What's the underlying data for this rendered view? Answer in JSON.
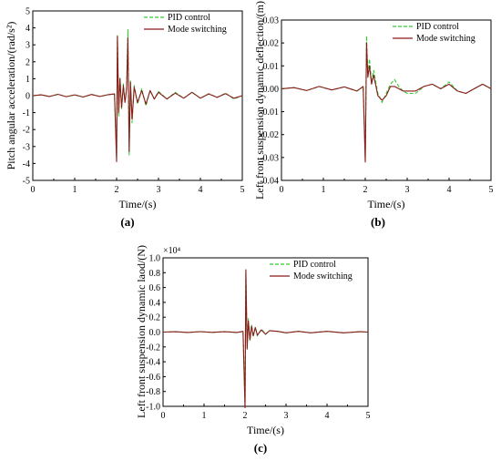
{
  "colors": {
    "pid": "#33cc33",
    "mode": "#8b1a1a",
    "axis": "#000000"
  },
  "chart_data": [
    {
      "type": "line",
      "panel_label": "(a)",
      "xlabel": "Time/(s)",
      "ylabel": "Pitch angular acceleration/(rad/s²)",
      "xlim": [
        0,
        5
      ],
      "ylim": [
        -5,
        5
      ],
      "xticks": [
        "0",
        "1",
        "2",
        "3",
        "4",
        "5"
      ],
      "yticks": [
        "-5",
        "-4",
        "-3",
        "-2",
        "-1",
        "0",
        "1",
        "2",
        "3",
        "4",
        "5"
      ],
      "grid": false,
      "legend_position": "top-right",
      "series": [
        {
          "name": "PID control",
          "style": "dashed",
          "x": [
            0,
            0.2,
            0.4,
            0.6,
            0.8,
            1.0,
            1.2,
            1.4,
            1.6,
            1.8,
            1.95,
            2.0,
            2.02,
            2.05,
            2.08,
            2.12,
            2.16,
            2.2,
            2.24,
            2.27,
            2.3,
            2.33,
            2.37,
            2.42,
            2.5,
            2.6,
            2.7,
            2.8,
            2.9,
            3.0,
            3.2,
            3.4,
            3.6,
            3.8,
            4.0,
            4.2,
            4.4,
            4.6,
            4.8,
            5.0
          ],
          "y": [
            0,
            0.05,
            -0.05,
            0.08,
            -0.06,
            0.05,
            -0.08,
            0.07,
            -0.05,
            0.06,
            0.1,
            -3.7,
            3.6,
            -1.2,
            1.1,
            -0.8,
            0.7,
            -0.4,
            0.5,
            3.9,
            -3.5,
            0.9,
            -1.6,
            0.6,
            -0.5,
            0.4,
            -0.6,
            0.3,
            -0.2,
            0.25,
            -0.2,
            0.2,
            -0.15,
            0.2,
            -0.15,
            0.12,
            -0.1,
            0.15,
            -0.2,
            0
          ]
        },
        {
          "name": "Mode switching",
          "style": "solid",
          "x": [
            0,
            0.2,
            0.4,
            0.6,
            0.8,
            1.0,
            1.2,
            1.4,
            1.6,
            1.8,
            1.95,
            2.0,
            2.02,
            2.05,
            2.08,
            2.12,
            2.16,
            2.2,
            2.24,
            2.27,
            2.3,
            2.33,
            2.37,
            2.42,
            2.5,
            2.6,
            2.7,
            2.8,
            2.9,
            3.0,
            3.2,
            3.4,
            3.6,
            3.8,
            4.0,
            4.2,
            4.4,
            4.6,
            4.8,
            5.0
          ],
          "y": [
            0,
            0.05,
            -0.05,
            0.08,
            -0.06,
            0.05,
            -0.08,
            0.07,
            -0.05,
            0.06,
            0.1,
            -3.9,
            3.5,
            -1.0,
            1.0,
            -0.7,
            0.6,
            -0.4,
            0.4,
            3.4,
            -3.3,
            0.8,
            -1.4,
            0.5,
            -0.4,
            0.3,
            -0.5,
            0.3,
            -0.2,
            0.2,
            -0.2,
            0.15,
            -0.15,
            0.2,
            -0.15,
            0.1,
            -0.1,
            0.12,
            -0.15,
            0
          ]
        }
      ]
    },
    {
      "type": "line",
      "panel_label": "(b)",
      "xlabel": "Time/(s)",
      "ylabel": "Left front suspension dynamic deflection/(m)",
      "xlim": [
        0,
        5
      ],
      "ylim": [
        -0.04,
        0.03
      ],
      "xticks": [
        "0",
        "1",
        "2",
        "3",
        "4",
        "5"
      ],
      "yticks": [
        "-0.04",
        "-0.03",
        "-0.02",
        "-0.01",
        "0.00",
        "0.01",
        "0.02",
        "0.03"
      ],
      "grid": false,
      "legend_position": "top-right",
      "series": [
        {
          "name": "PID control",
          "style": "dashed",
          "x": [
            0,
            0.3,
            0.6,
            0.9,
            1.2,
            1.5,
            1.8,
            1.95,
            2.0,
            2.03,
            2.06,
            2.1,
            2.15,
            2.2,
            2.3,
            2.4,
            2.5,
            2.6,
            2.7,
            2.8,
            2.9,
            3.0,
            3.2,
            3.4,
            3.6,
            3.8,
            4.0,
            4.2,
            4.4,
            4.6,
            4.8,
            5.0
          ],
          "y": [
            0,
            0.0005,
            -0.0008,
            0.001,
            -0.0005,
            0.0008,
            -0.001,
            0.001,
            -0.031,
            0.023,
            0.006,
            0.013,
            0.003,
            0.008,
            -0.002,
            -0.006,
            -0.002,
            0.002,
            0.004,
            0.001,
            -0.001,
            -0.002,
            -0.002,
            0.001,
            0.002,
            0.0,
            0.003,
            -0.001,
            -0.002,
            0.0,
            0.002,
            0.0
          ]
        },
        {
          "name": "Mode switching",
          "style": "solid",
          "x": [
            0,
            0.3,
            0.6,
            0.9,
            1.2,
            1.5,
            1.8,
            1.95,
            2.0,
            2.03,
            2.06,
            2.1,
            2.15,
            2.2,
            2.3,
            2.4,
            2.5,
            2.6,
            2.7,
            2.8,
            2.9,
            3.0,
            3.2,
            3.4,
            3.6,
            3.8,
            4.0,
            4.2,
            4.4,
            4.6,
            4.8,
            5.0
          ],
          "y": [
            0,
            0.0005,
            -0.0008,
            0.001,
            -0.0005,
            0.0008,
            -0.001,
            0.001,
            -0.032,
            0.02,
            0.005,
            0.01,
            0.002,
            0.006,
            -0.003,
            -0.005,
            -0.003,
            0.001,
            0.001,
            0.0,
            -0.001,
            -0.001,
            -0.001,
            0.001,
            0.002,
            0.0,
            0.002,
            -0.001,
            -0.002,
            0.0,
            0.002,
            0.0
          ]
        }
      ]
    },
    {
      "type": "line",
      "panel_label": "(c)",
      "xlabel": "Time/(s)",
      "ylabel": "Left front suspension dynamic laod/(N)",
      "multiplier": "×10⁴",
      "xlim": [
        0,
        5
      ],
      "ylim": [
        -1.0,
        1.0
      ],
      "xticks": [
        "0",
        "1",
        "2",
        "3",
        "4",
        "5"
      ],
      "yticks": [
        "-1.0",
        "-0.8",
        "-0.6",
        "-0.4",
        "-0.2",
        "0.0",
        "0.2",
        "0.4",
        "0.6",
        "0.8",
        "1.0"
      ],
      "grid": false,
      "legend_position": "top-right",
      "series": [
        {
          "name": "PID control",
          "style": "dashed",
          "x": [
            0,
            0.3,
            0.6,
            0.9,
            1.2,
            1.5,
            1.8,
            1.95,
            2.0,
            2.02,
            2.05,
            2.08,
            2.12,
            2.16,
            2.2,
            2.25,
            2.3,
            2.4,
            2.5,
            2.6,
            2.8,
            3.0,
            3.3,
            3.6,
            4.0,
            4.4,
            4.8,
            5.0
          ],
          "y": [
            0,
            0.005,
            -0.005,
            0.006,
            -0.004,
            0.005,
            -0.005,
            0.01,
            -1.0,
            0.8,
            -0.2,
            0.18,
            -0.12,
            0.1,
            -0.06,
            0.07,
            -0.05,
            0.04,
            -0.03,
            0.02,
            0.01,
            -0.01,
            0.01,
            -0.01,
            0.01,
            -0.01,
            0.005,
            0
          ]
        },
        {
          "name": "Mode switching",
          "style": "solid",
          "x": [
            0,
            0.3,
            0.6,
            0.9,
            1.2,
            1.5,
            1.8,
            1.95,
            2.0,
            2.02,
            2.05,
            2.08,
            2.12,
            2.16,
            2.2,
            2.25,
            2.3,
            2.4,
            2.5,
            2.6,
            2.8,
            3.0,
            3.3,
            3.6,
            4.0,
            4.4,
            4.8,
            5.0
          ],
          "y": [
            0,
            0.005,
            -0.005,
            0.006,
            -0.004,
            0.005,
            -0.005,
            0.01,
            -1.02,
            0.84,
            -0.23,
            0.15,
            -0.1,
            0.08,
            -0.05,
            0.06,
            -0.04,
            0.03,
            -0.03,
            0.02,
            0.01,
            -0.01,
            0.01,
            -0.01,
            0.01,
            -0.01,
            0.005,
            0
          ]
        }
      ]
    }
  ]
}
